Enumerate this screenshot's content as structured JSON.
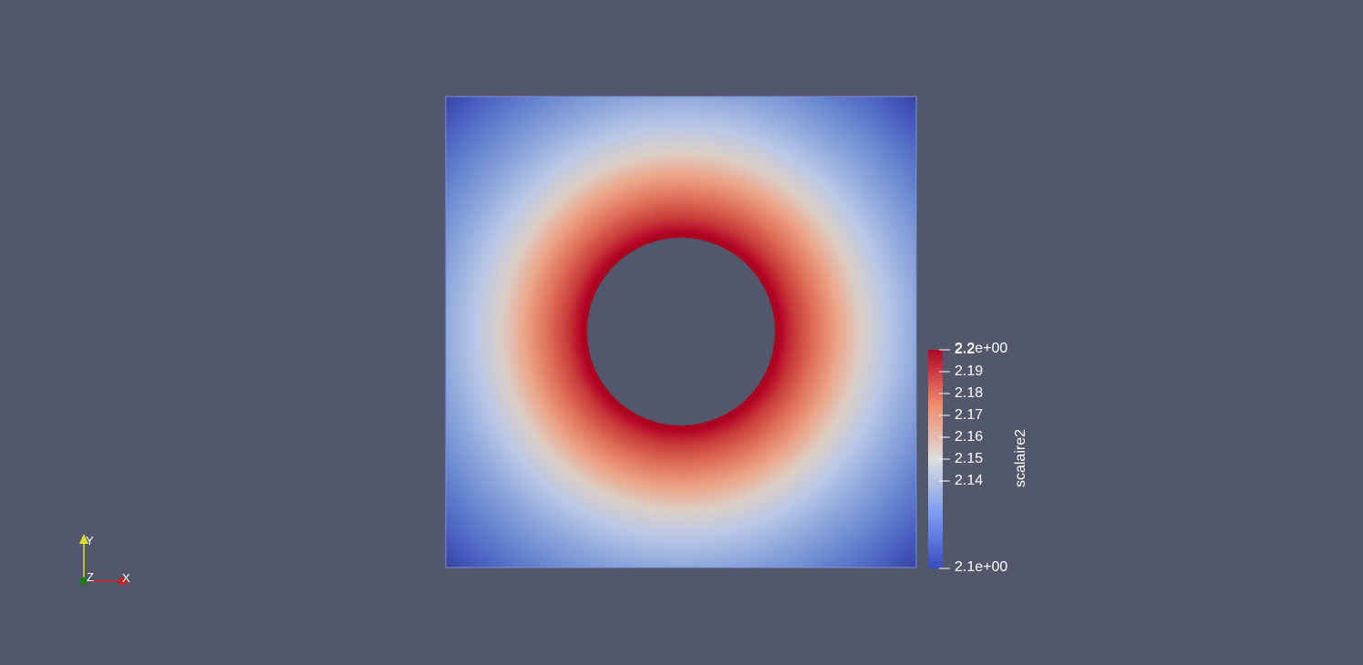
{
  "colors": {
    "background": "#52576b",
    "cold": "#3b4cc0",
    "neutral": "#dddddd",
    "hot": "#b40426"
  },
  "render": {
    "object": "square plate with circular hole",
    "colormap": "Cool to Warm"
  },
  "legend": {
    "title": "scalaire2",
    "range": [
      2.1,
      2.2
    ],
    "max_label": "2.2e+00",
    "min_label": "2.1e+00",
    "ticks": [
      {
        "value": 2.2,
        "label": "2.2"
      },
      {
        "value": 2.19,
        "label": "2.19"
      },
      {
        "value": 2.18,
        "label": "2.18"
      },
      {
        "value": 2.17,
        "label": "2.17"
      },
      {
        "value": 2.16,
        "label": "2.16"
      },
      {
        "value": 2.15,
        "label": "2.15"
      },
      {
        "value": 2.14,
        "label": "2.14"
      }
    ]
  },
  "axes": {
    "x_label": "X",
    "y_label": "Y",
    "z_label": "Z",
    "x_color": "#cc2222",
    "y_color": "#dddd22",
    "z_color": "#1a7a1a"
  }
}
